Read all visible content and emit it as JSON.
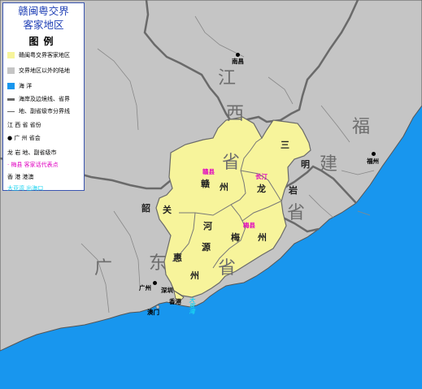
{
  "title_line1": "赣闽粤交界",
  "title_line2": "客家地区",
  "legend": {
    "heading": "图例",
    "items": [
      {
        "label": "赣闽粤交界客家地区",
        "symbol": "yellow-fill-swatch",
        "color": "#f7f49b"
      },
      {
        "label": "交界地区以外的陆地",
        "symbol": "gray-fill-swatch",
        "color": "#c5c5c5"
      },
      {
        "label": "海 洋",
        "symbol": "blue-fill-swatch",
        "color": "#1896ee"
      },
      {
        "label": "海岸及边境线、省界",
        "symbol": "thick-line",
        "color": "#666666"
      },
      {
        "label": "地、副省级市分界线",
        "symbol": "thin-line",
        "color": "#666666"
      },
      {
        "label": "江 西 省  省份",
        "symbol": "province-text"
      },
      {
        "label": "● 广 州  省会",
        "symbol": "capital-dot"
      },
      {
        "label": "龙 岩 地、副省级市",
        "symbol": "prefecture-text"
      },
      {
        "label": "· 梅县  客家话代表点",
        "symbol": "magenta-dot",
        "color": "#e000c0"
      },
      {
        "label": "香 港  港澳",
        "symbol": "sar-text"
      },
      {
        "label": "大亚湾  出海口",
        "symbol": "cyan-text",
        "color": "#1ad3f0"
      }
    ]
  },
  "provinces": {
    "jiangxi": [
      "江",
      "西",
      "省"
    ],
    "fujian": [
      "福",
      "建",
      "省"
    ],
    "guangdong": [
      "广",
      "东",
      "省"
    ]
  },
  "prefectures": {
    "ganzhou": [
      "赣",
      "州"
    ],
    "sanming": [
      "三",
      "明"
    ],
    "longyan": [
      "龙",
      "岩"
    ],
    "shaoguan": [
      "韶",
      "关"
    ],
    "heyuan": [
      "河",
      "源"
    ],
    "meizhou": [
      "梅",
      "州"
    ],
    "huizhou": [
      "惠",
      "州"
    ]
  },
  "capitals": {
    "nanchang": "南昌",
    "fuzhou": "福州",
    "guangzhou": "广州"
  },
  "hakka_points": {
    "ganxian": "赣县",
    "changting": "长汀",
    "meixian": "梅县"
  },
  "cities": {
    "shenzhen": "深圳",
    "hongkong": "香港",
    "macau": "澳门"
  },
  "outlet": "大亚湾",
  "colors": {
    "hakka_region": "#f7f49b",
    "other_land": "#c5c5c5",
    "ocean": "#1896ee",
    "border": "#666666",
    "title": "#1f3fb5",
    "hakka_text": "#e000c0",
    "outlet_text": "#1ad3f0"
  }
}
